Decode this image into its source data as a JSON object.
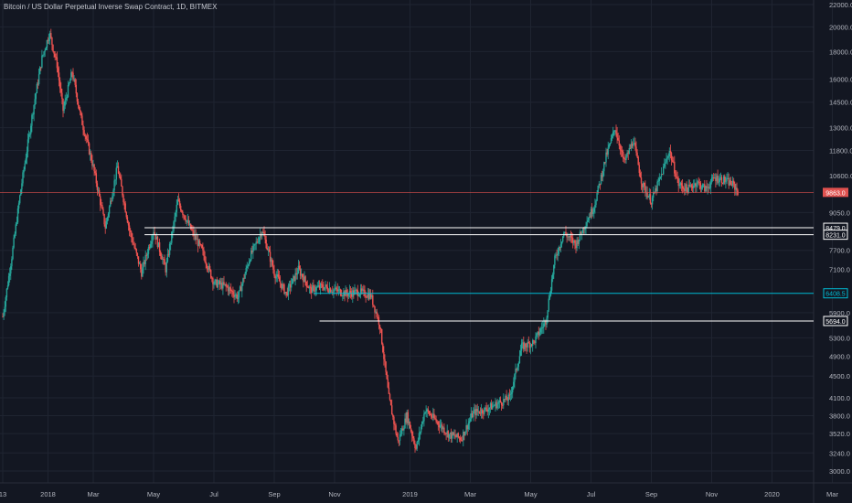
{
  "title": "Bitcoin / US Dollar Perpetual Inverse Swap Contract, 1D, BITMEX",
  "colors": {
    "background": "#131722",
    "grid": "#1f2431",
    "up": "#26a69a",
    "down": "#ef5350",
    "text": "#b2b5be",
    "last_price": "#e0514f",
    "cyan": "#00bcd4",
    "white": "#ffffff"
  },
  "chart_data": {
    "type": "candlestick",
    "scale": "log",
    "ylim": [
      2900,
      22000
    ],
    "y_ticks": [
      "22000.0",
      "20000.0",
      "18000.0",
      "16000.0",
      "14500.0",
      "13000.0",
      "11800.0",
      "10600.0",
      "9050.0",
      "7700.0",
      "7100.0",
      "5900.0",
      "5300.0",
      "4900.0",
      "4500.0",
      "4100.0",
      "3800.0",
      "3520.0",
      "3240.0",
      "3000.0"
    ],
    "x_ticks": [
      "13",
      "2018",
      "Mar",
      "May",
      "Jul",
      "Sep",
      "Nov",
      "2019",
      "Mar",
      "May",
      "Jul",
      "Sep",
      "Nov",
      "2020",
      "Mar"
    ],
    "last_price": {
      "value": 9863.0,
      "label": "9863.0"
    },
    "horizontal_levels": [
      {
        "value": 8479.0,
        "label": "8479.0",
        "color": "white",
        "start_month": 4.7
      },
      {
        "value": 8231.0,
        "label": "8231.0",
        "color": "white",
        "start_month": 4.7
      },
      {
        "value": 6408.5,
        "label": "6408.5",
        "color": "cyan",
        "start_month": 10.3
      },
      {
        "value": 5694.0,
        "label": "5694.0",
        "color": "white",
        "start_month": 10.5
      }
    ],
    "price_path_monthly": [
      {
        "month": 0.0,
        "close": 5800
      },
      {
        "month": 0.3,
        "close": 7500
      },
      {
        "month": 0.6,
        "close": 10000
      },
      {
        "month": 1.0,
        "close": 14000
      },
      {
        "month": 1.3,
        "close": 17500
      },
      {
        "month": 1.55,
        "close": 19500
      },
      {
        "month": 1.8,
        "close": 17000
      },
      {
        "month": 2.0,
        "close": 14000
      },
      {
        "month": 2.3,
        "close": 16500
      },
      {
        "month": 2.6,
        "close": 13500
      },
      {
        "month": 3.0,
        "close": 11000
      },
      {
        "month": 3.4,
        "close": 8500
      },
      {
        "month": 3.8,
        "close": 11000
      },
      {
        "month": 4.2,
        "close": 8400
      },
      {
        "month": 4.6,
        "close": 7000
      },
      {
        "month": 5.0,
        "close": 8400
      },
      {
        "month": 5.4,
        "close": 7100
      },
      {
        "month": 5.8,
        "close": 9500
      },
      {
        "month": 6.2,
        "close": 8500
      },
      {
        "month": 6.6,
        "close": 7700
      },
      {
        "month": 7.0,
        "close": 6700
      },
      {
        "month": 7.4,
        "close": 6600
      },
      {
        "month": 7.8,
        "close": 6300
      },
      {
        "month": 8.2,
        "close": 7500
      },
      {
        "month": 8.6,
        "close": 8400
      },
      {
        "month": 9.0,
        "close": 7000
      },
      {
        "month": 9.4,
        "close": 6400
      },
      {
        "month": 9.8,
        "close": 7100
      },
      {
        "month": 10.2,
        "close": 6500
      },
      {
        "month": 10.6,
        "close": 6600
      },
      {
        "month": 11.0,
        "close": 6500
      },
      {
        "month": 11.4,
        "close": 6400
      },
      {
        "month": 11.8,
        "close": 6450
      },
      {
        "month": 12.2,
        "close": 6350
      },
      {
        "month": 12.5,
        "close": 5600
      },
      {
        "month": 12.8,
        "close": 4100
      },
      {
        "month": 13.1,
        "close": 3400
      },
      {
        "month": 13.4,
        "close": 3800
      },
      {
        "month": 13.7,
        "close": 3300
      },
      {
        "month": 14.0,
        "close": 3900
      },
      {
        "month": 14.4,
        "close": 3700
      },
      {
        "month": 14.8,
        "close": 3500
      },
      {
        "month": 15.2,
        "close": 3450
      },
      {
        "month": 15.6,
        "close": 3850
      },
      {
        "month": 16.0,
        "close": 3900
      },
      {
        "month": 16.4,
        "close": 4000
      },
      {
        "month": 16.8,
        "close": 4100
      },
      {
        "month": 17.2,
        "close": 5100
      },
      {
        "month": 17.6,
        "close": 5200
      },
      {
        "month": 18.0,
        "close": 5700
      },
      {
        "month": 18.3,
        "close": 7400
      },
      {
        "month": 18.6,
        "close": 8300
      },
      {
        "month": 19.0,
        "close": 7900
      },
      {
        "month": 19.3,
        "close": 8600
      },
      {
        "month": 19.6,
        "close": 9300
      },
      {
        "month": 20.0,
        "close": 11500
      },
      {
        "month": 20.3,
        "close": 13000
      },
      {
        "month": 20.6,
        "close": 11200
      },
      {
        "month": 20.9,
        "close": 12300
      },
      {
        "month": 21.2,
        "close": 10200
      },
      {
        "month": 21.5,
        "close": 9500
      },
      {
        "month": 21.8,
        "close": 10500
      },
      {
        "month": 22.1,
        "close": 11800
      },
      {
        "month": 22.4,
        "close": 10200
      },
      {
        "month": 22.7,
        "close": 10000
      },
      {
        "month": 23.0,
        "close": 10300
      },
      {
        "month": 23.3,
        "close": 10000
      },
      {
        "month": 23.6,
        "close": 10500
      },
      {
        "month": 23.9,
        "close": 10400
      },
      {
        "month": 24.2,
        "close": 10200
      },
      {
        "month": 24.4,
        "close": 9863
      }
    ]
  }
}
